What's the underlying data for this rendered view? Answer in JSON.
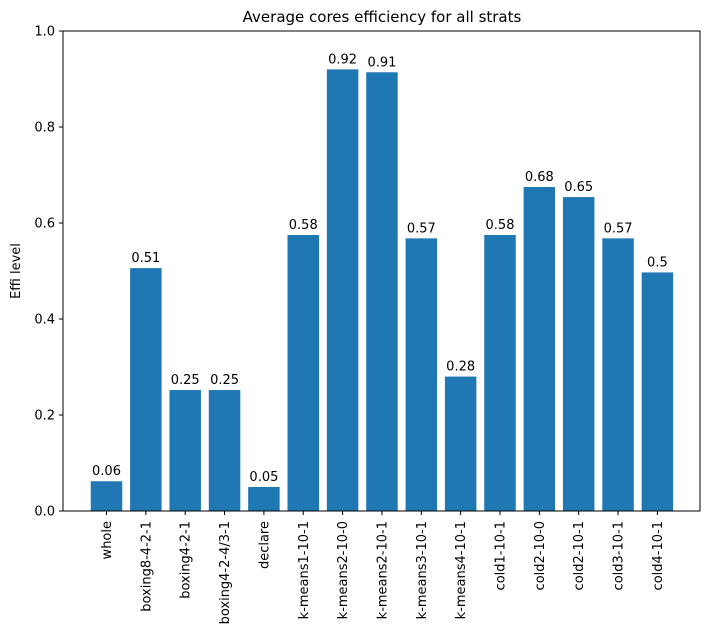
{
  "chart_data": {
    "type": "bar",
    "title": "Average cores efficiency for all strats",
    "xlabel": "",
    "ylabel": "Effi level",
    "ylim": [
      0,
      1.0
    ],
    "yticks": [
      {
        "value": 0.0,
        "label": "0.0"
      },
      {
        "value": 0.2,
        "label": "0.2"
      },
      {
        "value": 0.4,
        "label": "0.4"
      },
      {
        "value": 0.6,
        "label": "0.6"
      },
      {
        "value": 0.8,
        "label": "0.8"
      },
      {
        "value": 1.0,
        "label": "1.0"
      }
    ],
    "categories": [
      "whole",
      "boxing8-4-2-1",
      "boxing4-2-1",
      "boxing4-2-4/3-1",
      "declare",
      "k-means1-10-1",
      "k-means2-10-0",
      "k-means2-10-1",
      "k-means3-10-1",
      "k-means4-10-1",
      "cold1-10-1",
      "cold2-10-0",
      "cold2-10-1",
      "cold3-10-1",
      "cold4-10-1"
    ],
    "values": [
      0.062,
      0.506,
      0.252,
      0.252,
      0.05,
      0.575,
      0.92,
      0.914,
      0.568,
      0.28,
      0.575,
      0.675,
      0.654,
      0.568,
      0.497
    ],
    "data_labels": [
      "0.06",
      "0.51",
      "0.25",
      "0.25",
      "0.05",
      "0.58",
      "0.92",
      "0.91",
      "0.57",
      "0.28",
      "0.58",
      "0.68",
      "0.65",
      "0.57",
      "0.5"
    ],
    "bar_color": "#1f77b4",
    "grid": false,
    "legend": "none"
  }
}
